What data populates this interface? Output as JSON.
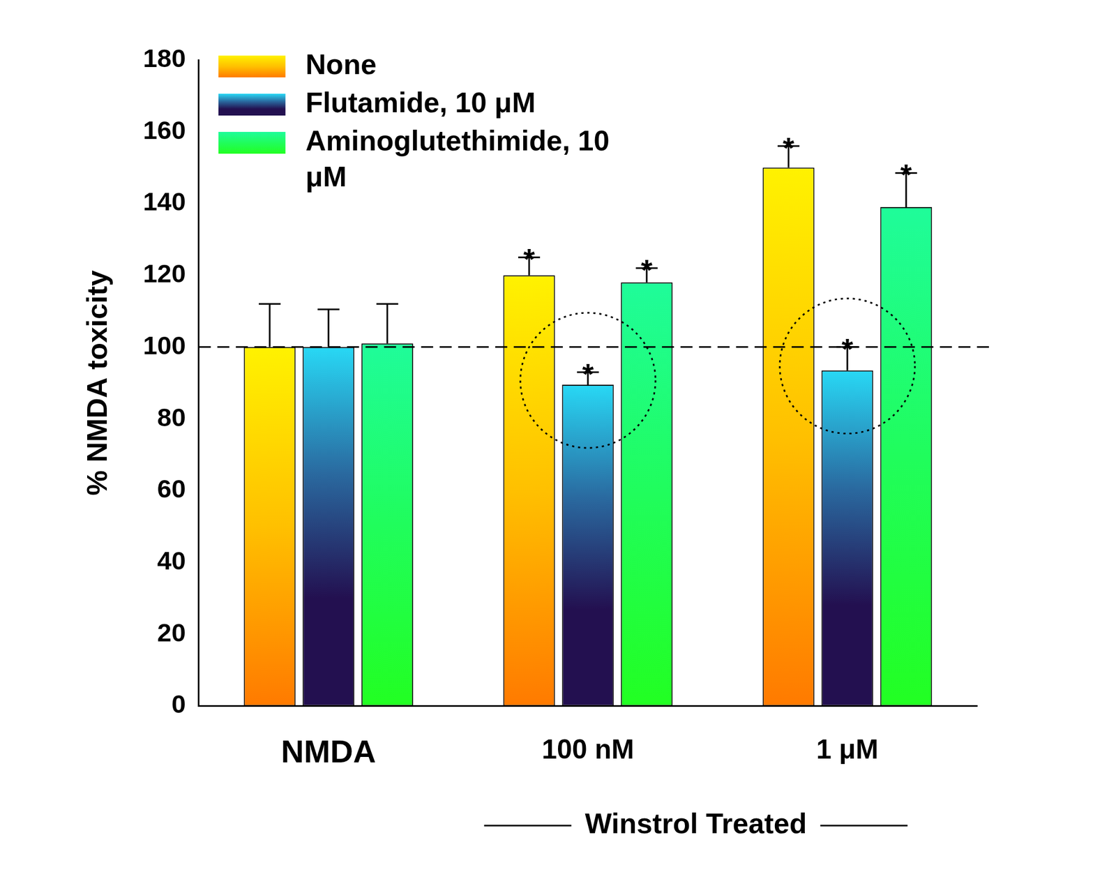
{
  "chart_data": {
    "type": "bar",
    "categories": [
      "NMDA",
      "100 nM",
      "1 μM"
    ],
    "group_label": {
      "text": "Winstrol Treated",
      "categories": [
        "100 nM",
        "1 μM"
      ]
    },
    "y_label": "% NMDA toxicity",
    "ylim": [
      0,
      180
    ],
    "yticks": [
      0,
      20,
      40,
      60,
      80,
      100,
      120,
      140,
      160,
      180
    ],
    "grid": false,
    "legend": "upper left",
    "series": [
      {
        "name": "None",
        "color": "#fff200",
        "values": [
          100,
          120,
          150
        ],
        "errors": [
          12,
          5,
          6
        ]
      },
      {
        "name": "Flutamide, 10 μM",
        "color": "#28d8f5",
        "values": [
          100,
          89.5,
          93.5
        ],
        "errors": [
          10.5,
          3.5,
          6.5
        ]
      },
      {
        "name": "Aminoglutethimide, 10 μM",
        "color": "#1ffc9a",
        "values": [
          101,
          118,
          139
        ],
        "errors": [
          11,
          4,
          9.5
        ]
      }
    ],
    "reference_line": 100,
    "annotations": [
      {
        "series": "None",
        "category": "100 nM",
        "text": "*"
      },
      {
        "series": "None",
        "category": "1 μM",
        "text": "*"
      },
      {
        "series": "Flutamide, 10 μM",
        "category": "100 nM",
        "text": "*"
      },
      {
        "series": "Flutamide, 10 μM",
        "category": "1 μM",
        "text": "*"
      },
      {
        "series": "Aminoglutethimide, 10 μM",
        "category": "100 nM",
        "text": "*"
      },
      {
        "series": "Aminoglutethimide, 10 μM",
        "category": "1 μM",
        "text": "*"
      }
    ],
    "highlights": [
      {
        "series": "Flutamide, 10 μM",
        "category": "100 nM"
      },
      {
        "series": "Flutamide, 10 μM",
        "category": "1 μM"
      }
    ]
  }
}
